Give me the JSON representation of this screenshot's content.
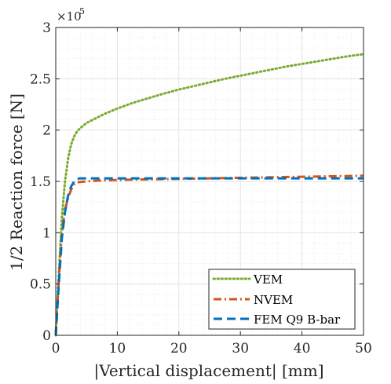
{
  "chart_data": {
    "type": "line",
    "title": "",
    "xlabel": "|Vertical displacement| [mm]",
    "ylabel": "1/2 Reaction force [N]",
    "y_multiplier_label": "×10",
    "y_multiplier_exponent": "5",
    "xlim": [
      0,
      50
    ],
    "ylim": [
      0,
      3
    ],
    "x_ticks": [
      0,
      10,
      20,
      30,
      40,
      50
    ],
    "x_tick_labels": [
      "0",
      "10",
      "20",
      "30",
      "40",
      "50"
    ],
    "y_ticks": [
      0,
      0.5,
      1,
      1.5,
      2,
      2.5,
      3
    ],
    "y_tick_labels": [
      "0",
      "0.5",
      "1",
      "1.5",
      "2",
      "2.5",
      "3"
    ],
    "grid": true,
    "legend_position": "bottom-right",
    "series": [
      {
        "name": "VEM",
        "color": "#77AC30",
        "style": "dotted",
        "x": [
          0,
          0.5,
          1,
          1.5,
          2,
          2.5,
          3,
          3.5,
          4,
          5,
          6,
          8,
          10,
          12.5,
          15,
          17.5,
          20,
          22.5,
          25,
          27.5,
          30,
          32.5,
          35,
          37.5,
          40,
          42.5,
          45,
          47.5,
          50
        ],
        "y": [
          0,
          0.6,
          1.15,
          1.5,
          1.72,
          1.86,
          1.94,
          1.99,
          2.02,
          2.07,
          2.1,
          2.16,
          2.21,
          2.265,
          2.31,
          2.355,
          2.395,
          2.43,
          2.465,
          2.5,
          2.53,
          2.56,
          2.59,
          2.62,
          2.645,
          2.67,
          2.695,
          2.72,
          2.74
        ]
      },
      {
        "name": "NVEM",
        "color": "#D95319",
        "style": "dashdot",
        "x": [
          0,
          0.5,
          1,
          1.5,
          2,
          2.5,
          3,
          3.5,
          4,
          5,
          6,
          8,
          10,
          15,
          20,
          25,
          30,
          35,
          40,
          45,
          50
        ],
        "y": [
          0,
          0.55,
          1.0,
          1.22,
          1.34,
          1.42,
          1.47,
          1.49,
          1.495,
          1.5,
          1.505,
          1.51,
          1.515,
          1.52,
          1.525,
          1.53,
          1.535,
          1.54,
          1.545,
          1.55,
          1.555
        ]
      },
      {
        "name": "FEM Q9 B-bar",
        "color": "#0072BD",
        "style": "dashed",
        "x": [
          0,
          0.5,
          1,
          1.5,
          2,
          2.5,
          3,
          3.5,
          4,
          5,
          6,
          8,
          10,
          15,
          20,
          25,
          30,
          35,
          40,
          45,
          50
        ],
        "y": [
          0,
          0.5,
          0.95,
          1.2,
          1.36,
          1.45,
          1.5,
          1.525,
          1.53,
          1.53,
          1.53,
          1.53,
          1.53,
          1.53,
          1.53,
          1.53,
          1.53,
          1.53,
          1.53,
          1.53,
          1.53
        ]
      }
    ]
  }
}
